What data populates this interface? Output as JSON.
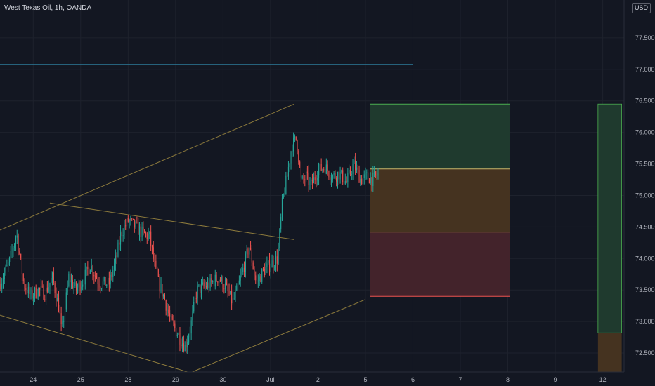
{
  "header": {
    "title": "West Texas Oil, 1h, OANDA",
    "currency": "USD"
  },
  "colors": {
    "background": "#131722",
    "grid": "#1e222d",
    "up": "#26a69a",
    "down": "#ef5350",
    "axis_text": "#b2b5be",
    "trendline": "#8c7a3c",
    "hline": "#2a6e8a",
    "target_zone": "#1f3a2e",
    "entry_zone": "#453320",
    "stop_zone": "#43232b"
  },
  "chart_data": {
    "type": "candlestick",
    "symbol": "West Texas Oil",
    "interval": "1h",
    "source": "OANDA",
    "y_range": [
      72.2,
      78.1
    ],
    "y_ticks": [
      72.5,
      73.0,
      73.5,
      74.0,
      74.5,
      75.0,
      75.5,
      76.0,
      76.5,
      77.0,
      77.5
    ],
    "y_tick_labels": [
      "72.500",
      "73.000",
      "73.500",
      "74.000",
      "74.500",
      "75.000",
      "75.500",
      "76.000",
      "76.500",
      "77.000",
      "77.500"
    ],
    "x_ticks": [
      {
        "label": "24",
        "t": 0.0
      },
      {
        "label": "25",
        "t": 1.0
      },
      {
        "label": "28",
        "t": 2.0
      },
      {
        "label": "29",
        "t": 3.0
      },
      {
        "label": "30",
        "t": 4.0
      },
      {
        "label": "Jul",
        "t": 5.0
      },
      {
        "label": "2",
        "t": 6.0
      },
      {
        "label": "5",
        "t": 7.0
      },
      {
        "label": "6",
        "t": 8.0
      },
      {
        "label": "7",
        "t": 9.0
      },
      {
        "label": "8",
        "t": 10.0
      },
      {
        "label": "9",
        "t": 11.0
      },
      {
        "label": "12",
        "t": 12.0
      }
    ],
    "x_range": [
      -0.7,
      12.45
    ],
    "path": [
      [
        -0.7,
        73.6
      ],
      [
        -0.5,
        73.95
      ],
      [
        -0.35,
        74.4
      ],
      [
        -0.2,
        73.6
      ],
      [
        -0.05,
        73.4
      ],
      [
        0.1,
        73.5
      ],
      [
        0.25,
        73.45
      ],
      [
        0.4,
        73.7
      ],
      [
        0.55,
        73.2
      ],
      [
        0.6,
        72.8
      ],
      [
        0.75,
        73.7
      ],
      [
        0.9,
        73.5
      ],
      [
        1.05,
        73.65
      ],
      [
        1.2,
        73.9
      ],
      [
        1.4,
        73.6
      ],
      [
        1.6,
        73.6
      ],
      [
        1.75,
        74.0
      ],
      [
        1.85,
        74.4
      ],
      [
        2.0,
        74.6
      ],
      [
        2.15,
        74.5
      ],
      [
        2.3,
        74.4
      ],
      [
        2.45,
        74.35
      ],
      [
        2.6,
        73.7
      ],
      [
        2.75,
        73.4
      ],
      [
        2.9,
        73.0
      ],
      [
        3.05,
        72.8
      ],
      [
        3.2,
        72.6
      ],
      [
        3.3,
        72.85
      ],
      [
        3.45,
        73.5
      ],
      [
        3.6,
        73.55
      ],
      [
        3.75,
        73.6
      ],
      [
        3.9,
        73.7
      ],
      [
        4.05,
        73.55
      ],
      [
        4.2,
        73.3
      ],
      [
        4.3,
        73.5
      ],
      [
        4.45,
        73.9
      ],
      [
        4.55,
        74.2
      ],
      [
        4.7,
        73.6
      ],
      [
        4.85,
        73.8
      ],
      [
        5.0,
        73.9
      ],
      [
        5.15,
        74.0
      ],
      [
        5.25,
        74.9
      ],
      [
        5.35,
        75.3
      ],
      [
        5.45,
        75.8
      ],
      [
        5.55,
        75.9
      ],
      [
        5.65,
        75.2
      ],
      [
        5.75,
        75.3
      ],
      [
        5.85,
        75.15
      ],
      [
        6.0,
        75.4
      ],
      [
        6.15,
        75.45
      ],
      [
        6.3,
        75.3
      ],
      [
        6.45,
        75.35
      ],
      [
        6.6,
        75.2
      ],
      [
        6.75,
        75.5
      ],
      [
        6.9,
        75.25
      ],
      [
        7.05,
        75.3
      ],
      [
        7.15,
        75.25
      ],
      [
        7.28,
        75.35
      ]
    ],
    "annotations": {
      "horizontal_line": {
        "price": 77.08,
        "t_start": -0.7,
        "t_end": 8.0
      },
      "trendlines": [
        {
          "name": "rising-upper",
          "from": [
            -0.7,
            74.45
          ],
          "to": [
            5.5,
            76.45
          ]
        },
        {
          "name": "falling-upper",
          "from": [
            0.35,
            74.88
          ],
          "to": [
            5.5,
            74.3
          ]
        },
        {
          "name": "falling-lower",
          "from": [
            -0.7,
            73.1
          ],
          "to": [
            3.25,
            72.2
          ]
        },
        {
          "name": "rising-lower",
          "from": [
            3.35,
            72.2
          ],
          "to": [
            7.0,
            73.35
          ]
        }
      ],
      "position_tool": {
        "t_start": 7.1,
        "t_end": 10.05,
        "entry": 75.42,
        "target": 76.45,
        "mid": 74.42,
        "stop": 73.4
      },
      "price_scale_bar": {
        "t_start": 11.9,
        "t_end": 12.4,
        "from_price": 76.45,
        "split_price": 72.82,
        "to_price": 72.2
      }
    }
  }
}
